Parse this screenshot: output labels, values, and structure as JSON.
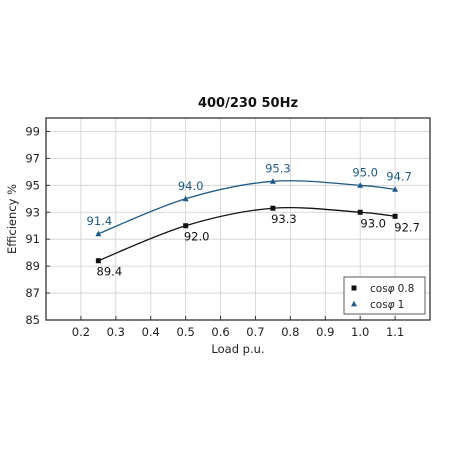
{
  "chart_data": {
    "type": "line",
    "title": "400/230 50Hz",
    "xlabel": "Load p.u.",
    "ylabel": "Efficiency %",
    "xlim": [
      0.1,
      1.2
    ],
    "ylim": [
      85,
      100
    ],
    "xticks": [
      "0.2",
      "0.3",
      "0.4",
      "0.5",
      "0.6",
      "0.7",
      "0.8",
      "0.9",
      "1.0",
      "1.1"
    ],
    "yticks": [
      "85",
      "87",
      "89",
      "91",
      "93",
      "95",
      "97",
      "99"
    ],
    "grid": true,
    "legend_position": "bottom-right",
    "series": [
      {
        "name": "cosφ 0.8",
        "legend_prefix": "cos",
        "legend_symbol": "φ",
        "legend_value": "0.8",
        "marker": "square",
        "color": "#111111",
        "x": [
          0.25,
          0.5,
          0.75,
          1.0,
          1.1
        ],
        "y": [
          89.4,
          92.0,
          93.3,
          93.0,
          92.7
        ],
        "labels": [
          "89.4",
          "92.0",
          "93.3",
          "93.0",
          "92.7"
        ]
      },
      {
        "name": "cosφ 1",
        "legend_prefix": "cos",
        "legend_symbol": "φ",
        "legend_value": "1",
        "marker": "triangle",
        "color": "#1f5a86",
        "x": [
          0.25,
          0.5,
          0.75,
          1.0,
          1.1
        ],
        "y": [
          91.4,
          94.0,
          95.3,
          95.0,
          94.7
        ],
        "labels": [
          "91.4",
          "94.0",
          "95.3",
          "95.0",
          "94.7"
        ]
      }
    ]
  }
}
